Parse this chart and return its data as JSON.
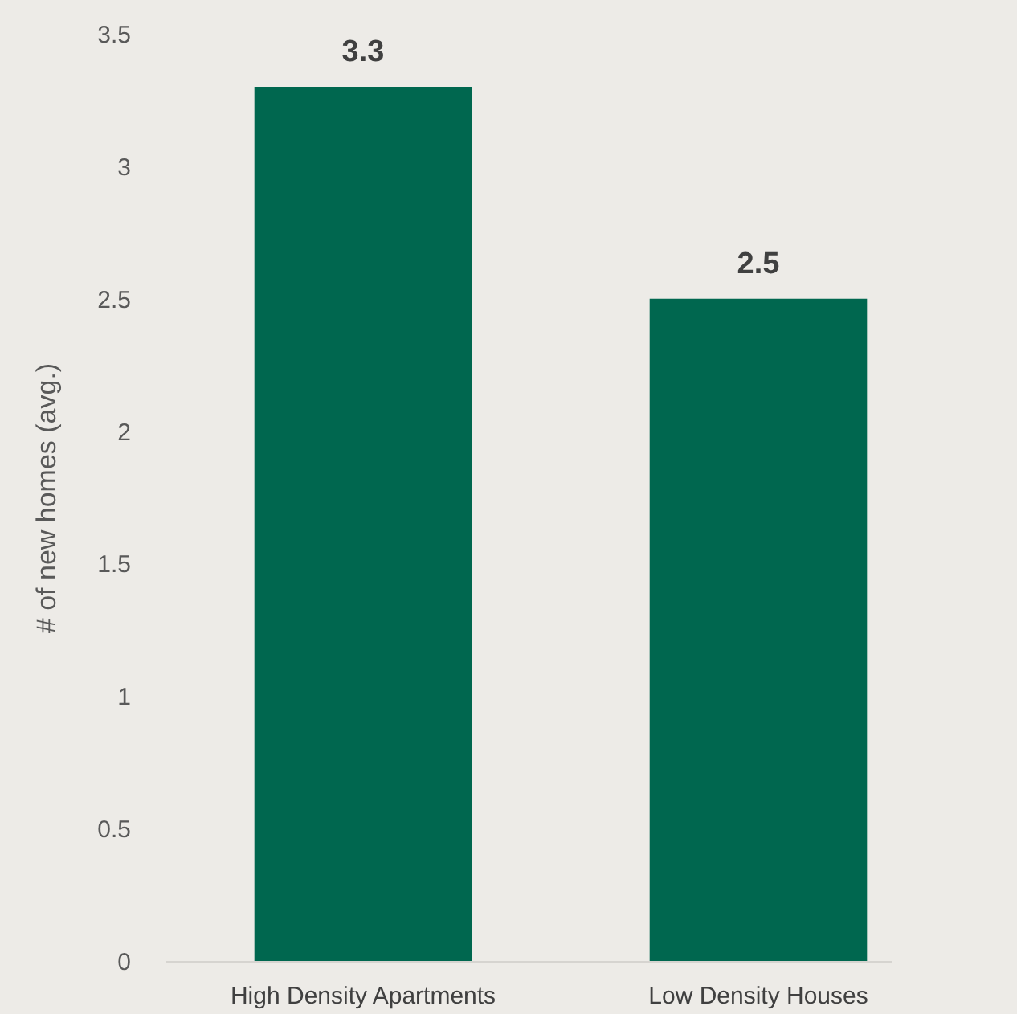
{
  "chart_data": {
    "type": "bar",
    "ylabel": "# of new homes (avg.)",
    "categories": [
      "High Density Apartments",
      "Low Density Houses"
    ],
    "values": [
      3.3,
      2.5
    ],
    "color": "#00674f",
    "ylim": [
      0,
      3.5
    ],
    "yticks": [
      0,
      0.5,
      1,
      1.5,
      2,
      2.5,
      3,
      3.5
    ],
    "grid": false,
    "data_labels": true
  }
}
